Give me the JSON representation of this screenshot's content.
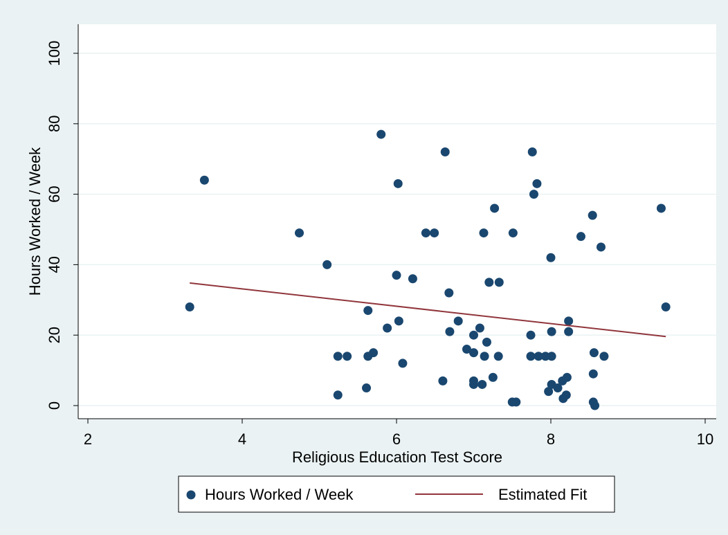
{
  "chart_data": {
    "type": "scatter",
    "xlabel": "Religious Education Test Score",
    "ylabel": "Hours Worked / Week",
    "xlim": [
      2,
      10
    ],
    "xticks": [
      2,
      4,
      6,
      8,
      10
    ],
    "ylim": [
      0,
      100
    ],
    "yticks": [
      0,
      20,
      40,
      60,
      80,
      100
    ],
    "grid": true,
    "legend": "bottom",
    "series": [
      {
        "name": "Hours Worked / Week",
        "color": "#1a476f",
        "mode": "scatter",
        "x": [
          3.32,
          3.51,
          4.74,
          5.1,
          5.24,
          5.24,
          5.36,
          5.61,
          5.63,
          5.63,
          5.7,
          5.8,
          5.88,
          6.0,
          6.03,
          6.02,
          6.08,
          6.21,
          6.38,
          6.49,
          6.6,
          6.63,
          6.68,
          6.69,
          6.8,
          6.91,
          7.0,
          7.0,
          7.0,
          7.0,
          7.08,
          7.11,
          7.13,
          7.14,
          7.17,
          7.2,
          7.25,
          7.27,
          7.32,
          7.33,
          7.5,
          7.51,
          7.55,
          7.74,
          7.74,
          7.76,
          7.78,
          7.82,
          7.84,
          7.93,
          7.97,
          8.0,
          8.01,
          8.01,
          8.01,
          8.09,
          8.15,
          8.16,
          8.2,
          8.21,
          8.23,
          8.23,
          8.39,
          8.54,
          8.55,
          8.56,
          8.55,
          8.57,
          8.65,
          8.69,
          9.43,
          9.49
        ],
        "values": [
          28,
          64,
          49,
          40,
          14,
          3,
          14,
          5,
          27,
          14,
          15,
          77,
          22,
          37,
          24,
          63,
          12,
          36,
          49,
          49,
          7,
          72,
          32,
          21,
          24,
          16,
          20,
          15,
          7,
          6,
          22,
          6,
          49,
          14,
          18,
          35,
          8,
          56,
          14,
          35,
          1,
          49,
          1,
          20,
          14,
          72,
          60,
          63,
          14,
          14,
          4,
          42,
          21,
          14,
          6,
          5,
          7,
          2,
          3,
          8,
          24,
          21,
          48,
          54,
          9,
          15,
          1,
          0,
          45,
          14,
          56,
          28
        ]
      },
      {
        "name": "Estimated Fit",
        "color": "#90353b",
        "mode": "line",
        "x": [
          3.32,
          9.49
        ],
        "values": [
          34.8,
          19.6
        ]
      }
    ]
  }
}
